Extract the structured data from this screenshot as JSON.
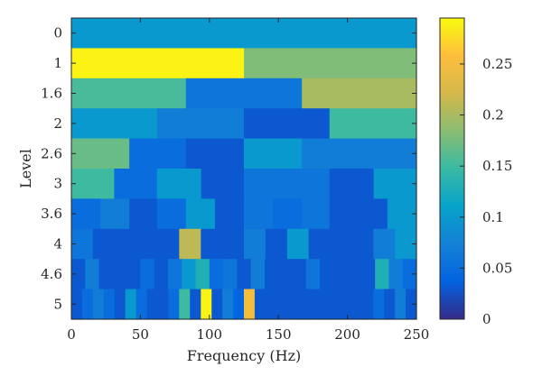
{
  "chart_data": {
    "type": "heatmap",
    "title": "",
    "xlabel": "Frequency (Hz)",
    "ylabel": "Level",
    "xlim": [
      0,
      250
    ],
    "x_ticks": [
      0,
      50,
      100,
      150,
      200,
      250
    ],
    "y_categories": [
      "0",
      "1",
      "1.6",
      "2",
      "2.6",
      "3",
      "3.6",
      "4",
      "4.6",
      "5"
    ],
    "colorbar": {
      "min": 0,
      "max": 0.295,
      "ticks": [
        0,
        0.05,
        0.1,
        0.15,
        0.2,
        0.25
      ],
      "colormap": "parula"
    },
    "rows": [
      {
        "level": "0",
        "bands": [
          {
            "from": 0,
            "to": 250,
            "value": 0.1
          }
        ]
      },
      {
        "level": "1",
        "bands": [
          {
            "from": 0,
            "to": 125,
            "value": 0.29
          },
          {
            "from": 125,
            "to": 250,
            "value": 0.18
          }
        ]
      },
      {
        "level": "1.6",
        "bands": [
          {
            "from": 0,
            "to": 83,
            "value": 0.155
          },
          {
            "from": 83,
            "to": 167,
            "value": 0.06
          },
          {
            "from": 167,
            "to": 250,
            "value": 0.2
          }
        ]
      },
      {
        "level": "2",
        "bands": [
          {
            "from": 0,
            "to": 62,
            "value": 0.1
          },
          {
            "from": 62,
            "to": 125,
            "value": 0.07
          },
          {
            "from": 125,
            "to": 187,
            "value": 0.03
          },
          {
            "from": 187,
            "to": 250,
            "value": 0.15
          }
        ]
      },
      {
        "level": "2.6",
        "bands": [
          {
            "from": 0,
            "to": 42,
            "value": 0.17
          },
          {
            "from": 42,
            "to": 83,
            "value": 0.05
          },
          {
            "from": 83,
            "to": 125,
            "value": 0.03
          },
          {
            "from": 125,
            "to": 167,
            "value": 0.1
          },
          {
            "from": 167,
            "to": 208,
            "value": 0.07
          },
          {
            "from": 208,
            "to": 250,
            "value": 0.07
          }
        ]
      },
      {
        "level": "3",
        "bands": [
          {
            "from": 0,
            "to": 31,
            "value": 0.15
          },
          {
            "from": 31,
            "to": 62,
            "value": 0.05
          },
          {
            "from": 62,
            "to": 94,
            "value": 0.1
          },
          {
            "from": 94,
            "to": 125,
            "value": 0.03
          },
          {
            "from": 125,
            "to": 156,
            "value": 0.06
          },
          {
            "from": 156,
            "to": 187,
            "value": 0.06
          },
          {
            "from": 187,
            "to": 219,
            "value": 0.03
          },
          {
            "from": 219,
            "to": 250,
            "value": 0.1
          }
        ]
      },
      {
        "level": "3.6",
        "bands": [
          {
            "from": 0,
            "to": 21,
            "value": 0.05
          },
          {
            "from": 21,
            "to": 42,
            "value": 0.07
          },
          {
            "from": 42,
            "to": 62,
            "value": 0.03
          },
          {
            "from": 62,
            "to": 83,
            "value": 0.05
          },
          {
            "from": 83,
            "to": 104,
            "value": 0.1
          },
          {
            "from": 104,
            "to": 125,
            "value": 0.03
          },
          {
            "from": 125,
            "to": 146,
            "value": 0.06
          },
          {
            "from": 146,
            "to": 167,
            "value": 0.05
          },
          {
            "from": 167,
            "to": 187,
            "value": 0.06
          },
          {
            "from": 187,
            "to": 208,
            "value": 0.03
          },
          {
            "from": 208,
            "to": 229,
            "value": 0.03
          },
          {
            "from": 229,
            "to": 250,
            "value": 0.1
          }
        ]
      },
      {
        "level": "4",
        "bands": [
          {
            "from": 0,
            "to": 15.6,
            "value": 0.06
          },
          {
            "from": 15.6,
            "to": 31.3,
            "value": 0.03
          },
          {
            "from": 31.3,
            "to": 46.9,
            "value": 0.03
          },
          {
            "from": 46.9,
            "to": 62.5,
            "value": 0.03
          },
          {
            "from": 62.5,
            "to": 78.1,
            "value": 0.03
          },
          {
            "from": 78.1,
            "to": 93.8,
            "value": 0.21
          },
          {
            "from": 93.8,
            "to": 109.4,
            "value": 0.03
          },
          {
            "from": 109.4,
            "to": 125,
            "value": 0.03
          },
          {
            "from": 125,
            "to": 140.6,
            "value": 0.07
          },
          {
            "from": 140.6,
            "to": 156.3,
            "value": 0.03
          },
          {
            "from": 156.3,
            "to": 171.9,
            "value": 0.1
          },
          {
            "from": 171.9,
            "to": 187.5,
            "value": 0.03
          },
          {
            "from": 187.5,
            "to": 203.1,
            "value": 0.03
          },
          {
            "from": 203.1,
            "to": 218.8,
            "value": 0.03
          },
          {
            "from": 218.8,
            "to": 234.4,
            "value": 0.07
          },
          {
            "from": 234.4,
            "to": 250,
            "value": 0.1
          }
        ]
      },
      {
        "level": "4.6",
        "bands": [
          {
            "from": 0,
            "to": 10,
            "value": 0.03
          },
          {
            "from": 10,
            "to": 20,
            "value": 0.07
          },
          {
            "from": 20,
            "to": 30,
            "value": 0.03
          },
          {
            "from": 30,
            "to": 40,
            "value": 0.03
          },
          {
            "from": 40,
            "to": 50,
            "value": 0.03
          },
          {
            "from": 50,
            "to": 60,
            "value": 0.05
          },
          {
            "from": 60,
            "to": 70,
            "value": 0.03
          },
          {
            "from": 70,
            "to": 80,
            "value": 0.06
          },
          {
            "from": 80,
            "to": 90,
            "value": 0.1
          },
          {
            "from": 90,
            "to": 100,
            "value": 0.13
          },
          {
            "from": 100,
            "to": 110,
            "value": 0.05
          },
          {
            "from": 110,
            "to": 120,
            "value": 0.06
          },
          {
            "from": 120,
            "to": 130,
            "value": 0.03
          },
          {
            "from": 130,
            "to": 140,
            "value": 0.07
          },
          {
            "from": 140,
            "to": 150,
            "value": 0.03
          },
          {
            "from": 150,
            "to": 160,
            "value": 0.03
          },
          {
            "from": 160,
            "to": 170,
            "value": 0.03
          },
          {
            "from": 170,
            "to": 180,
            "value": 0.06
          },
          {
            "from": 180,
            "to": 190,
            "value": 0.03
          },
          {
            "from": 190,
            "to": 200,
            "value": 0.03
          },
          {
            "from": 200,
            "to": 210,
            "value": 0.03
          },
          {
            "from": 210,
            "to": 220,
            "value": 0.03
          },
          {
            "from": 220,
            "to": 230,
            "value": 0.13
          },
          {
            "from": 230,
            "to": 240,
            "value": 0.07
          },
          {
            "from": 240,
            "to": 250,
            "value": 0.05
          }
        ]
      },
      {
        "level": "5",
        "bands": [
          {
            "from": 0,
            "to": 7.8,
            "value": 0.03
          },
          {
            "from": 7.8,
            "to": 15.6,
            "value": 0.05
          },
          {
            "from": 15.6,
            "to": 23.4,
            "value": 0.07
          },
          {
            "from": 23.4,
            "to": 31.3,
            "value": 0.05
          },
          {
            "from": 31.3,
            "to": 39.1,
            "value": 0.03
          },
          {
            "from": 39.1,
            "to": 46.9,
            "value": 0.1
          },
          {
            "from": 46.9,
            "to": 54.7,
            "value": 0.05
          },
          {
            "from": 54.7,
            "to": 62.5,
            "value": 0.03
          },
          {
            "from": 62.5,
            "to": 70.3,
            "value": 0.03
          },
          {
            "from": 70.3,
            "to": 78.1,
            "value": 0.05
          },
          {
            "from": 78.1,
            "to": 85.9,
            "value": 0.15
          },
          {
            "from": 85.9,
            "to": 93.8,
            "value": 0.03
          },
          {
            "from": 93.8,
            "to": 101.6,
            "value": 0.29
          },
          {
            "from": 101.6,
            "to": 109.4,
            "value": 0.03
          },
          {
            "from": 109.4,
            "to": 117.2,
            "value": 0.07
          },
          {
            "from": 117.2,
            "to": 125,
            "value": 0.04
          },
          {
            "from": 125,
            "to": 132.8,
            "value": 0.25
          },
          {
            "from": 132.8,
            "to": 140.6,
            "value": 0.03
          },
          {
            "from": 140.6,
            "to": 148.4,
            "value": 0.03
          },
          {
            "from": 148.4,
            "to": 156.3,
            "value": 0.03
          },
          {
            "from": 156.3,
            "to": 164.1,
            "value": 0.03
          },
          {
            "from": 164.1,
            "to": 171.9,
            "value": 0.03
          },
          {
            "from": 171.9,
            "to": 179.7,
            "value": 0.03
          },
          {
            "from": 179.7,
            "to": 187.5,
            "value": 0.03
          },
          {
            "from": 187.5,
            "to": 195.3,
            "value": 0.03
          },
          {
            "from": 195.3,
            "to": 203.1,
            "value": 0.03
          },
          {
            "from": 203.1,
            "to": 210.9,
            "value": 0.03
          },
          {
            "from": 210.9,
            "to": 218.8,
            "value": 0.03
          },
          {
            "from": 218.8,
            "to": 226.6,
            "value": 0.05
          },
          {
            "from": 226.6,
            "to": 234.4,
            "value": 0.03
          },
          {
            "from": 234.4,
            "to": 242.2,
            "value": 0.07
          },
          {
            "from": 242.2,
            "to": 250,
            "value": 0.03
          }
        ]
      }
    ]
  }
}
